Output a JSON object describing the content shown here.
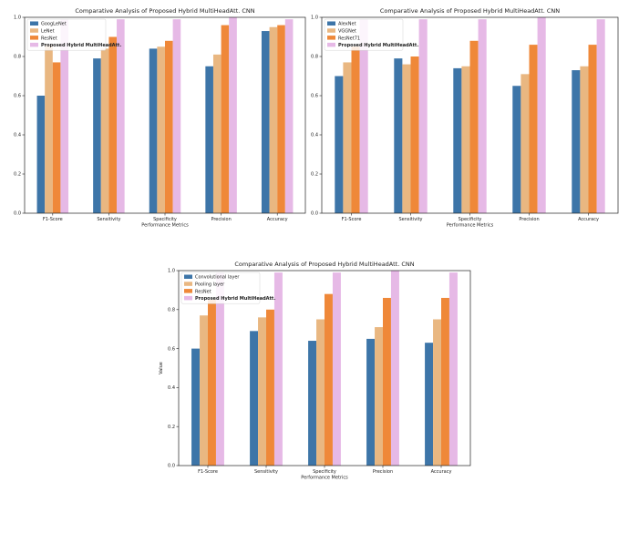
{
  "chart_data": [
    {
      "type": "bar",
      "title": "Comparative Analysis of Proposed Hybrid MultiHeadAtt. CNN",
      "xlabel": "Performance Metrics",
      "ylabel": "",
      "ylim": [
        0,
        1.0
      ],
      "yticks": [
        "0.0",
        "0.2",
        "0.4",
        "0.6",
        "0.8",
        "1.0"
      ],
      "grid": false,
      "legend_position": "top-left",
      "categories": [
        "F1-Score",
        "Sensitivity",
        "Specificity",
        "Precision",
        "Accuracy"
      ],
      "series": [
        {
          "name": "GoogLeNet",
          "color": "#3d75a8",
          "values": [
            0.6,
            0.79,
            0.84,
            0.75,
            0.93
          ]
        },
        {
          "name": "LeNet",
          "color": "#e9b781",
          "values": [
            0.86,
            0.84,
            0.85,
            0.81,
            0.95
          ]
        },
        {
          "name": "ResNet",
          "color": "#ef8839",
          "values": [
            0.77,
            0.9,
            0.88,
            0.96,
            0.96
          ]
        },
        {
          "name": "Proposed Hybrid MultiHeadAtt.",
          "color": "#e6b9e6",
          "bold": true,
          "values": [
            0.99,
            0.99,
            0.99,
            1.0,
            0.99
          ]
        }
      ]
    },
    {
      "type": "bar",
      "title": "Comparative Analysis of Proposed Hybrid MultiHeadAtt. CNN",
      "xlabel": "Performance Metrics",
      "ylabel": "",
      "ylim": [
        0,
        1.0
      ],
      "yticks": [
        "0.0",
        "0.2",
        "0.4",
        "0.6",
        "0.8",
        "1.0"
      ],
      "grid": false,
      "legend_position": "top-left",
      "categories": [
        "F1-Score",
        "Sensitivity",
        "Specificity",
        "Precision",
        "Accuracy"
      ],
      "series": [
        {
          "name": "AlexNet",
          "color": "#3d75a8",
          "values": [
            0.7,
            0.79,
            0.74,
            0.65,
            0.73
          ]
        },
        {
          "name": "VGGNet",
          "color": "#e9b781",
          "values": [
            0.77,
            0.76,
            0.75,
            0.71,
            0.75
          ]
        },
        {
          "name": "ResNet71",
          "color": "#ef8839",
          "values": [
            0.85,
            0.8,
            0.88,
            0.86,
            0.86
          ]
        },
        {
          "name": "Proposed Hybrid MultiHeadAtt.",
          "color": "#e6b9e6",
          "bold": true,
          "values": [
            0.99,
            0.99,
            0.99,
            1.0,
            0.99
          ]
        }
      ]
    },
    {
      "type": "bar",
      "title": "Comparative Analysis of Proposed Hybrid MultiHeadAtt. CNN",
      "xlabel": "Performance Metrics",
      "ylabel": "Value",
      "ylim": [
        0,
        1.0
      ],
      "yticks": [
        "0.0",
        "0.2",
        "0.4",
        "0.6",
        "0.8",
        "1.0"
      ],
      "grid": false,
      "legend_position": "top-left",
      "categories": [
        "F1-Score",
        "Sensitivity",
        "Specificity",
        "Precision",
        "Accuracy"
      ],
      "series": [
        {
          "name": "Convolutional layer",
          "color": "#3d75a8",
          "values": [
            0.6,
            0.69,
            0.64,
            0.65,
            0.63
          ]
        },
        {
          "name": "Pooling layer",
          "color": "#e9b781",
          "values": [
            0.77,
            0.76,
            0.75,
            0.71,
            0.75
          ]
        },
        {
          "name": "ResNet",
          "color": "#ef8839",
          "values": [
            0.85,
            0.8,
            0.88,
            0.86,
            0.86
          ]
        },
        {
          "name": "Proposed Hybrid MultiHeadAtt.",
          "color": "#e6b9e6",
          "bold": true,
          "values": [
            0.99,
            0.99,
            0.99,
            1.0,
            0.99
          ]
        }
      ]
    }
  ]
}
